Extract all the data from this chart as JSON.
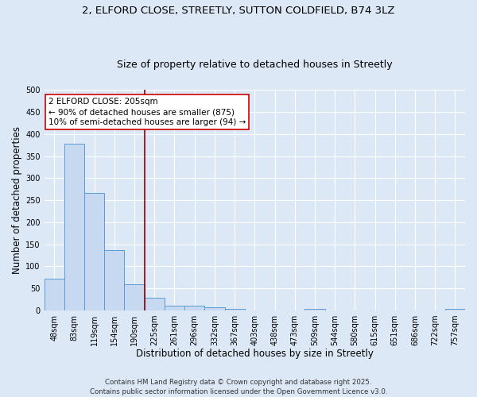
{
  "title_line1": "2, ELFORD CLOSE, STREETLY, SUTTON COLDFIELD, B74 3LZ",
  "title_line2": "Size of property relative to detached houses in Streetly",
  "bar_labels": [
    "48sqm",
    "83sqm",
    "119sqm",
    "154sqm",
    "190sqm",
    "225sqm",
    "261sqm",
    "296sqm",
    "332sqm",
    "367sqm",
    "403sqm",
    "438sqm",
    "473sqm",
    "509sqm",
    "544sqm",
    "580sqm",
    "615sqm",
    "651sqm",
    "686sqm",
    "722sqm",
    "757sqm"
  ],
  "bar_values": [
    72,
    378,
    267,
    137,
    60,
    29,
    10,
    10,
    8,
    4,
    0,
    0,
    0,
    4,
    0,
    0,
    0,
    0,
    0,
    0,
    3
  ],
  "bar_color": "#c6d9f0",
  "bar_edgecolor": "#5b9bd5",
  "xlabel": "Distribution of detached houses by size in Streetly",
  "ylabel": "Number of detached properties",
  "ylim": [
    0,
    500
  ],
  "yticks": [
    0,
    50,
    100,
    150,
    200,
    250,
    300,
    350,
    400,
    450,
    500
  ],
  "vline_x": 4.5,
  "vline_color": "#8b0000",
  "annotation_title": "2 ELFORD CLOSE: 205sqm",
  "annotation_line2": "← 90% of detached houses are smaller (875)",
  "annotation_line3": "10% of semi-detached houses are larger (94) →",
  "annotation_box_edgecolor": "#cc0000",
  "annotation_box_facecolor": "#ffffff",
  "footer_line1": "Contains HM Land Registry data © Crown copyright and database right 2025.",
  "footer_line2": "Contains public sector information licensed under the Open Government Licence v3.0.",
  "background_color": "#dce8f5",
  "plot_bg_color": "#dce8f5",
  "grid_color": "#ffffff",
  "title_fontsize": 9.5,
  "subtitle_fontsize": 9.0,
  "axis_label_fontsize": 8.5,
  "tick_fontsize": 7.0,
  "annotation_fontsize": 7.5,
  "footer_fontsize": 6.2
}
